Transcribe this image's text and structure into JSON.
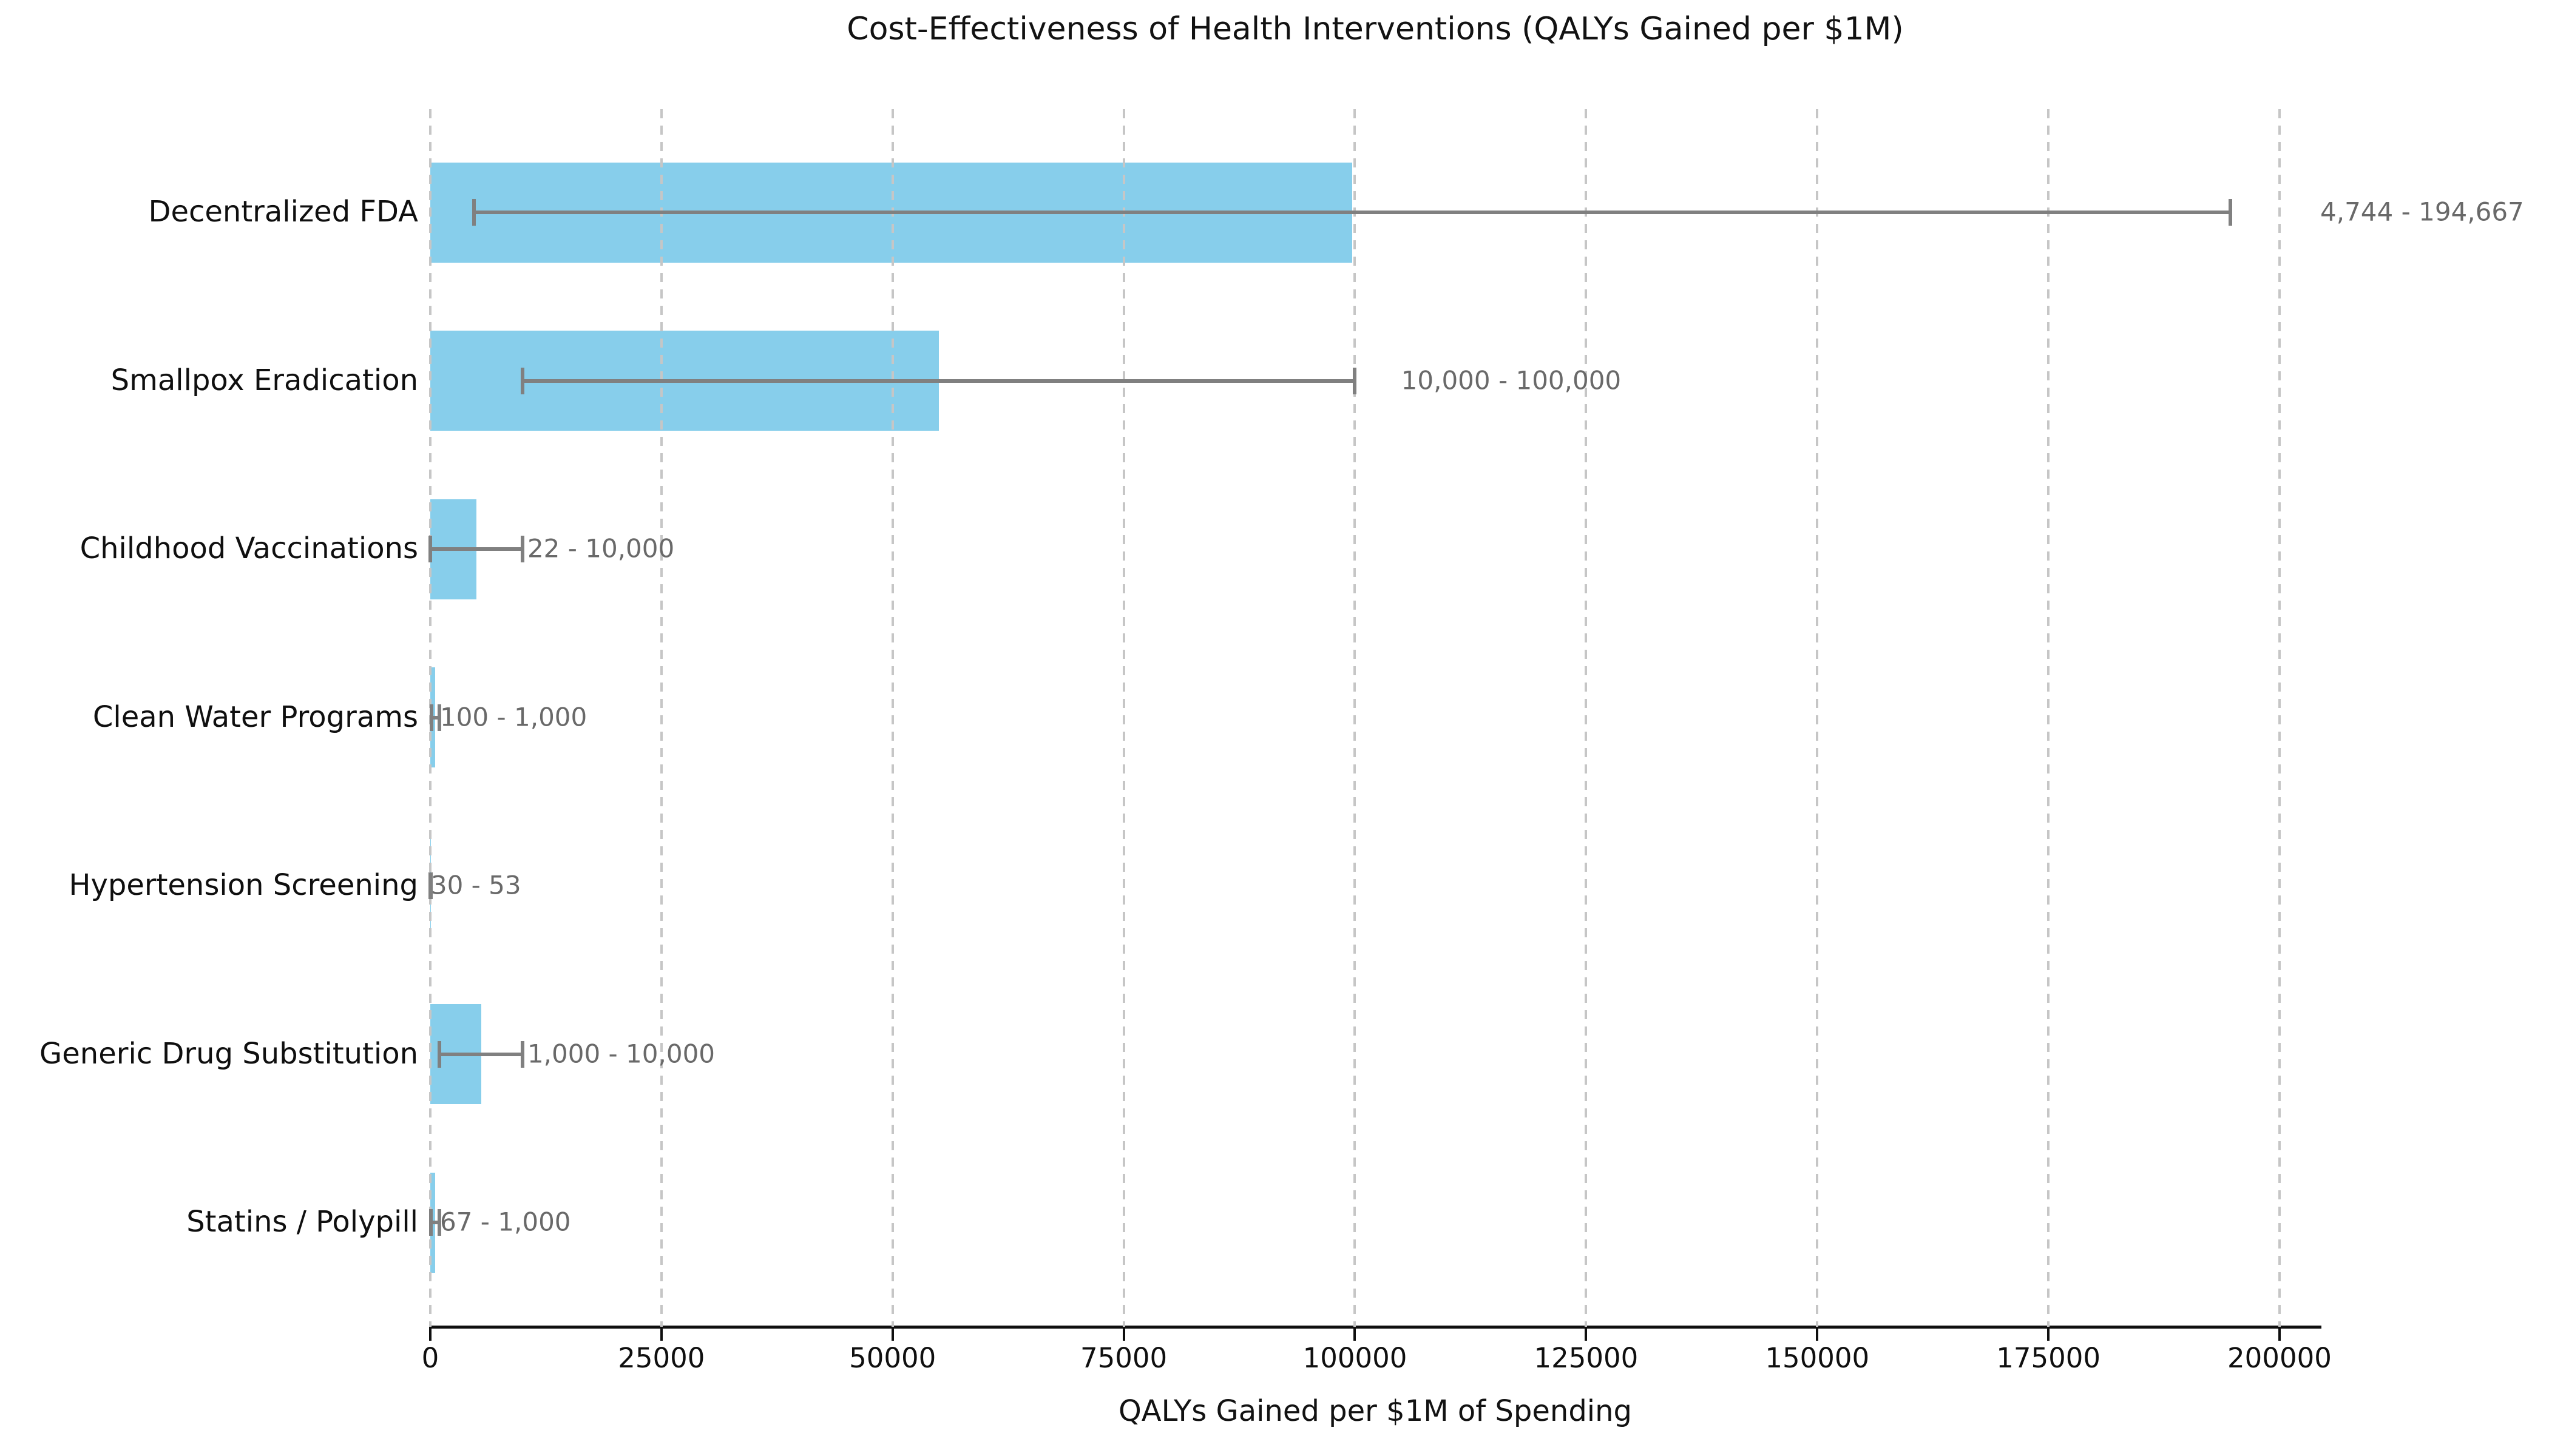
{
  "chart_data": {
    "type": "bar",
    "orientation": "horizontal",
    "title": "Cost-Effectiveness of Health Interventions (QALYs Gained per $1M)",
    "xlabel": "QALYs Gained per $1M of Spending",
    "xlim": [
      0,
      204400
    ],
    "x_ticks": [
      0,
      25000,
      50000,
      75000,
      100000,
      125000,
      150000,
      175000,
      200000
    ],
    "x_tick_labels": [
      "0",
      "25000",
      "50000",
      "75000",
      "100000",
      "125000",
      "150000",
      "175000",
      "200000"
    ],
    "grid": "vertical dashed gridlines at each x tick",
    "legend": "none",
    "bar_color": "#87CEEB",
    "error_bar_color": "#808080",
    "range_label_color": "#696969",
    "categories": [
      "Decentralized FDA",
      "Smallpox Eradication",
      "Childhood Vaccinations",
      "Clean Water Programs",
      "Hypertension Screening",
      "Generic Drug Substitution",
      "Statins / Polypill"
    ],
    "series": [
      {
        "category": "Decentralized FDA",
        "low": 4744,
        "high": 194667,
        "bar_value": 99705.5,
        "range_label": "4,744 - 194,667"
      },
      {
        "category": "Smallpox Eradication",
        "low": 10000,
        "high": 100000,
        "bar_value": 55000,
        "range_label": "10,000 - 100,000"
      },
      {
        "category": "Childhood Vaccinations",
        "low": 22,
        "high": 10000,
        "bar_value": 5011,
        "range_label": "22 - 10,000"
      },
      {
        "category": "Clean Water Programs",
        "low": 100,
        "high": 1000,
        "bar_value": 550,
        "range_label": "100 - 1,000"
      },
      {
        "category": "Hypertension Screening",
        "low": 30,
        "high": 53,
        "bar_value": 41.5,
        "range_label": "30 - 53"
      },
      {
        "category": "Generic Drug Substitution",
        "low": 1000,
        "high": 10000,
        "bar_value": 5500,
        "range_label": "1,000 - 10,000"
      },
      {
        "category": "Statins / Polypill",
        "low": 67,
        "high": 1000,
        "bar_value": 533.5,
        "range_label": "67 - 1,000"
      }
    ]
  }
}
